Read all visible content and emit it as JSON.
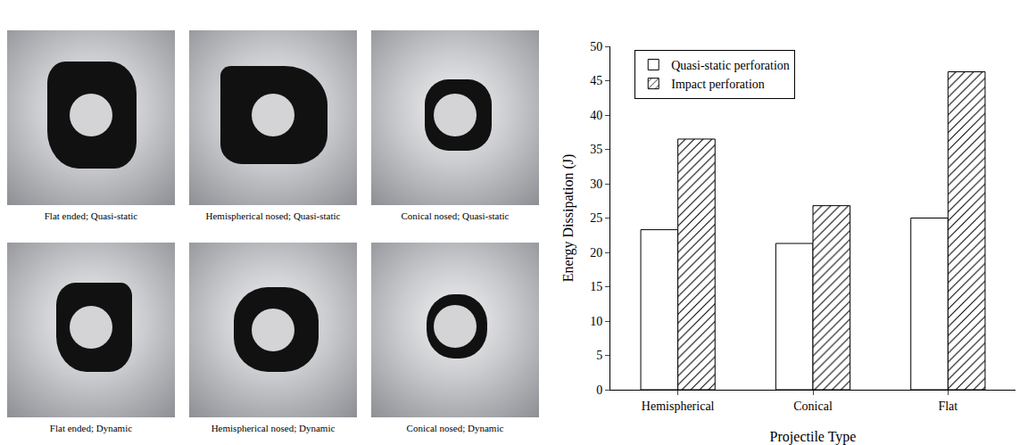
{
  "photos": [
    "Flat ended; Quasi-static",
    "Hemispherical nosed; Quasi-static",
    "Conical nosed; Quasi-static",
    "Flat ended; Dynamic",
    "Hemispherical nosed; Dynamic",
    "Conical nosed; Dynamic"
  ],
  "chart_data": {
    "type": "bar",
    "x_label": "Projectile Type",
    "y_label": "Energy Dissipation (J)",
    "categories": [
      "Hemispherical",
      "Conical",
      "Flat"
    ],
    "series": [
      {
        "name": "Quasi-static perforation",
        "color": "#ffffff",
        "marker": "plain",
        "values": [
          23.3,
          21.3,
          25.0
        ]
      },
      {
        "name": "Impact perforation",
        "color": "#ffffff",
        "marker": "hatch",
        "values": [
          36.5,
          26.8,
          46.3
        ]
      }
    ],
    "ylim": [
      0,
      50
    ],
    "yticks": [
      0,
      5,
      10,
      15,
      20,
      25,
      30,
      35,
      40,
      45,
      50
    ],
    "grid": false,
    "legend": "top left"
  }
}
